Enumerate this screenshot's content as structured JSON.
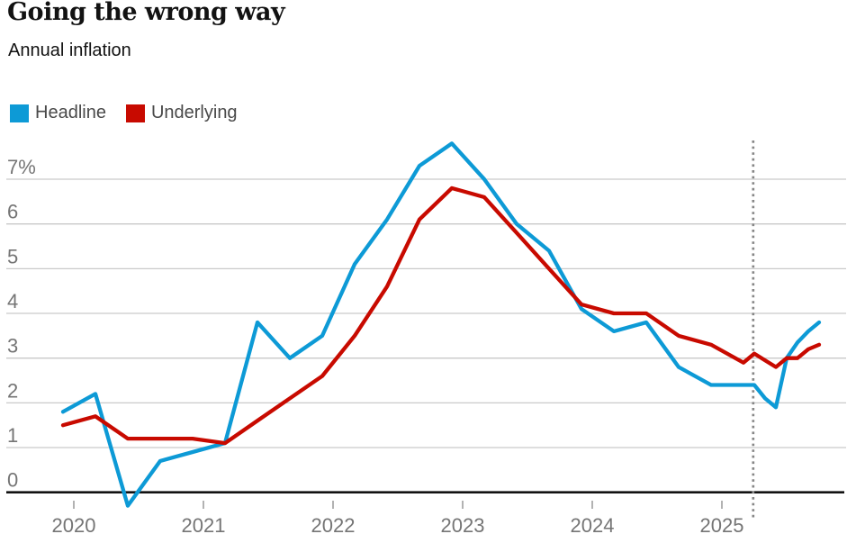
{
  "title": "Going the wrong way",
  "subtitle": "Annual inflation",
  "legend": [
    {
      "label": "Headline",
      "color": "#0d9ad6"
    },
    {
      "label": "Underlying",
      "color": "#c80a00"
    }
  ],
  "chart_data": {
    "type": "line",
    "title": "Going the wrong way",
    "subtitle": "Annual inflation",
    "xlabel": "",
    "ylabel": "Annual inflation (%)",
    "ylim": [
      -0.55,
      8.0
    ],
    "grid": "horizontal",
    "legend_position": "top-left",
    "point_format": [
      "date",
      "months_since_dec_2019",
      "value_pct"
    ],
    "y_ticks": [
      {
        "label": "7%",
        "value": 7
      },
      {
        "label": "6",
        "value": 6
      },
      {
        "label": "5",
        "value": 5
      },
      {
        "label": "4",
        "value": 4
      },
      {
        "label": "3",
        "value": 3
      },
      {
        "label": "2",
        "value": 2
      },
      {
        "label": "1",
        "value": 1
      },
      {
        "label": "0",
        "value": 0
      }
    ],
    "x_ticks": [
      {
        "label": "2020",
        "month": 1
      },
      {
        "label": "2021",
        "month": 13
      },
      {
        "label": "2022",
        "month": 25
      },
      {
        "label": "2023",
        "month": 37
      },
      {
        "label": "2024",
        "month": 49
      },
      {
        "label": "2025",
        "month": 61
      }
    ],
    "divider": {
      "month": 63.9,
      "style": "dotted-vertical",
      "color": "#878787"
    },
    "series": [
      {
        "name": "Headline",
        "color": "#0d9ad6",
        "points": [
          [
            "2019 Q4",
            0,
            1.8
          ],
          [
            "2020 Q1",
            3,
            2.2
          ],
          [
            "2020 Q2",
            6,
            -0.3
          ],
          [
            "2020 Q3",
            9,
            0.7
          ],
          [
            "2020 Q4",
            12,
            0.9
          ],
          [
            "2021 Q1",
            15,
            1.1
          ],
          [
            "2021 Q2",
            18,
            3.8
          ],
          [
            "2021 Q3",
            21,
            3.0
          ],
          [
            "2021 Q4",
            24,
            3.5
          ],
          [
            "2022 Q1",
            27,
            5.1
          ],
          [
            "2022 Q2",
            30,
            6.1
          ],
          [
            "2022 Q3",
            33,
            7.3
          ],
          [
            "2022 Q4",
            36,
            7.8
          ],
          [
            "2023 Q1",
            39,
            7.0
          ],
          [
            "2023 Q2",
            42,
            6.0
          ],
          [
            "2023 Q3",
            45,
            5.4
          ],
          [
            "2023 Q4",
            48,
            4.1
          ],
          [
            "2024 Q1",
            51,
            3.6
          ],
          [
            "2024 Q2",
            54,
            3.8
          ],
          [
            "2024 Q3",
            57,
            2.8
          ],
          [
            "2024 Q4",
            60,
            2.4
          ],
          [
            "2025 Q1",
            63,
            2.4
          ],
          [
            "Apr 2025",
            64,
            2.4
          ],
          [
            "May 2025",
            65,
            2.1
          ],
          [
            "Jun 2025",
            66,
            1.9
          ],
          [
            "Jul 2025",
            67,
            3.0
          ],
          [
            "Aug 2025",
            68,
            3.35
          ],
          [
            "Sep 2025",
            69,
            3.6
          ],
          [
            "Oct 2025",
            70,
            3.8
          ]
        ]
      },
      {
        "name": "Underlying",
        "color": "#c80a00",
        "points": [
          [
            "2019 Q4",
            0,
            1.5
          ],
          [
            "2020 Q1",
            3,
            1.7
          ],
          [
            "2020 Q2",
            6,
            1.2
          ],
          [
            "2020 Q3",
            9,
            1.2
          ],
          [
            "2020 Q4",
            12,
            1.2
          ],
          [
            "2021 Q1",
            15,
            1.1
          ],
          [
            "2021 Q2",
            18,
            1.6
          ],
          [
            "2021 Q3",
            21,
            2.1
          ],
          [
            "2021 Q4",
            24,
            2.6
          ],
          [
            "2022 Q1",
            27,
            3.5
          ],
          [
            "2022 Q2",
            30,
            4.6
          ],
          [
            "2022 Q3",
            33,
            6.1
          ],
          [
            "2022 Q4",
            36,
            6.8
          ],
          [
            "2023 Q1",
            39,
            6.6
          ],
          [
            "2023 Q2",
            42,
            5.8
          ],
          [
            "2023 Q3",
            45,
            5.0
          ],
          [
            "2023 Q4",
            48,
            4.2
          ],
          [
            "2024 Q1",
            51,
            4.0
          ],
          [
            "2024 Q2",
            54,
            4.0
          ],
          [
            "2024 Q3",
            57,
            3.5
          ],
          [
            "2024 Q4",
            60,
            3.3
          ],
          [
            "2025 Q1",
            63,
            2.9
          ],
          [
            "Apr 2025",
            64,
            3.1
          ],
          [
            "May 2025",
            65,
            2.95
          ],
          [
            "Jun 2025",
            66,
            2.8
          ],
          [
            "Jul 2025",
            67,
            3.0
          ],
          [
            "Aug 2025",
            68,
            3.0
          ],
          [
            "Sep 2025",
            69,
            3.2
          ],
          [
            "Oct 2025",
            70,
            3.3
          ]
        ]
      }
    ],
    "colors": {
      "gridline": "#c9c9c9",
      "zero_axis": "#121212",
      "axis_text": "#757575",
      "tick_mark": "#999999"
    }
  }
}
